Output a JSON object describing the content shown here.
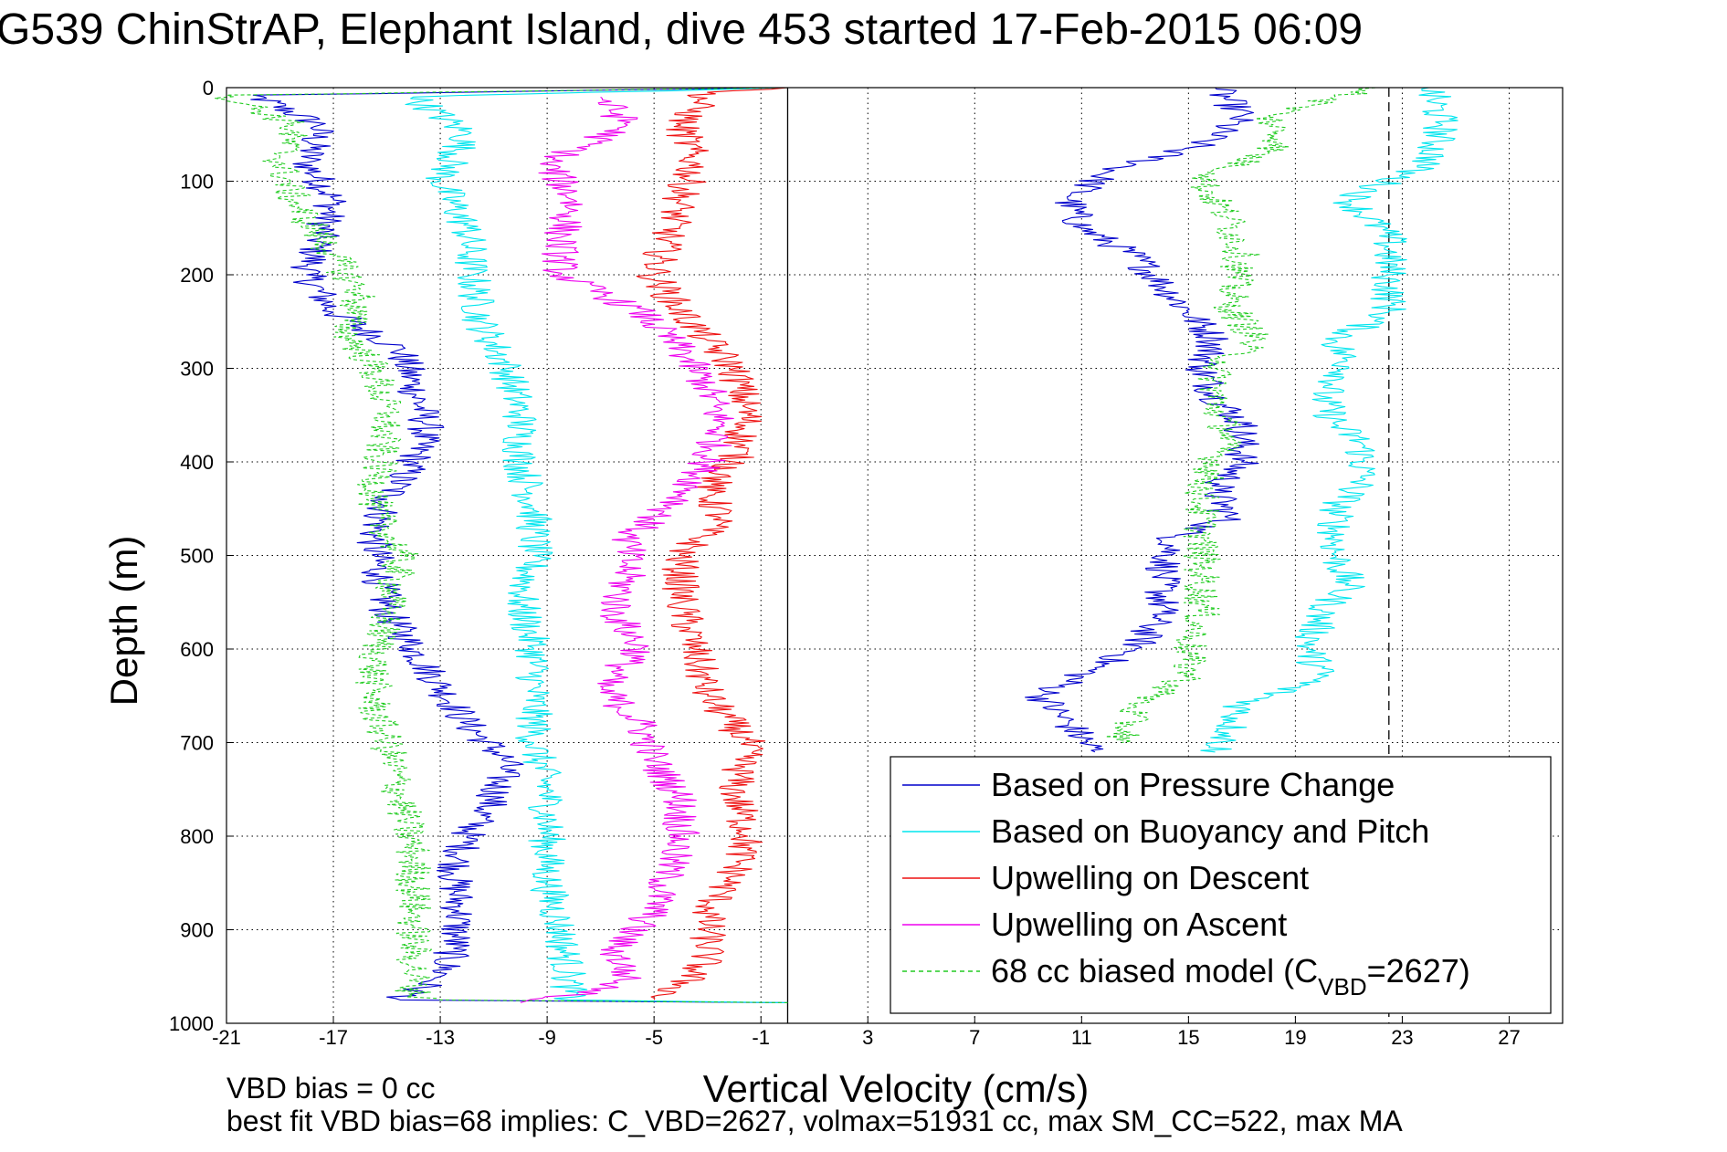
{
  "chart_data": {
    "type": "line",
    "title": "G539 ChinStrAP, Elephant Island, dive 453 started 17-Feb-2015 06:09",
    "xlabel": "Vertical Velocity (cm/s)",
    "ylabel": "Depth (m)",
    "xlim": [
      -21,
      29
    ],
    "ylim": [
      0,
      1000
    ],
    "y_reversed": true,
    "grid": true,
    "xticks": [
      -21,
      -17,
      -13,
      -9,
      -5,
      -1,
      3,
      7,
      11,
      15,
      19,
      23,
      27
    ],
    "yticks": [
      0,
      100,
      200,
      300,
      400,
      500,
      600,
      700,
      800,
      900,
      1000
    ],
    "reference_lines": [
      {
        "style": "solid",
        "color": "#000000",
        "x": 0
      },
      {
        "style": "dashed",
        "color": "#000000",
        "x": 22.5
      }
    ],
    "legend": {
      "position": "bottom-right",
      "entries": [
        {
          "label": "Based on Pressure Change",
          "color": "#0000cc",
          "dash": false
        },
        {
          "label": "Based on Buoyancy and Pitch",
          "color": "#00e5ee",
          "dash": false
        },
        {
          "label": "Upwelling on Descent",
          "color": "#ee1111",
          "dash": false
        },
        {
          "label": "Upwelling on Ascent",
          "color": "#ee00ee",
          "dash": false
        },
        {
          "label_main": "68 cc biased model (C",
          "label_sub": "VBD",
          "label_tail": "=2627)",
          "color": "#22cc22",
          "dash": true
        }
      ]
    },
    "series": [
      {
        "color": "#0000cc",
        "segment": "descent",
        "points": [
          [
            0,
            0
          ],
          [
            -20,
            8
          ],
          [
            -17.5,
            40
          ],
          [
            -18,
            80
          ],
          [
            -17,
            120
          ],
          [
            -17.5,
            160
          ],
          [
            -18,
            200
          ],
          [
            -17,
            240
          ],
          [
            -14.5,
            280
          ],
          [
            -14,
            320
          ],
          [
            -13.5,
            360
          ],
          [
            -14,
            400
          ],
          [
            -15,
            440
          ],
          [
            -15.5,
            480
          ],
          [
            -15.3,
            520
          ],
          [
            -15,
            560
          ],
          [
            -14,
            600
          ],
          [
            -13,
            640
          ],
          [
            -12,
            680
          ],
          [
            -10.5,
            720
          ],
          [
            -11,
            760
          ],
          [
            -12,
            800
          ],
          [
            -12.5,
            840
          ],
          [
            -12.3,
            880
          ],
          [
            -12.5,
            920
          ],
          [
            -13,
            950
          ],
          [
            -14.5,
            975
          ],
          [
            0,
            978
          ]
        ]
      },
      {
        "color": "#0000cc",
        "segment": "ascent",
        "points": [
          [
            0,
            0
          ],
          [
            16,
            0
          ],
          [
            17,
            30
          ],
          [
            15.5,
            60
          ],
          [
            12,
            90
          ],
          [
            10.5,
            120
          ],
          [
            11,
            150
          ],
          [
            13,
            180
          ],
          [
            14,
            210
          ],
          [
            15,
            240
          ],
          [
            16,
            270
          ],
          [
            15.5,
            300
          ],
          [
            16,
            330
          ],
          [
            17,
            360
          ],
          [
            17,
            400
          ],
          [
            16,
            430
          ],
          [
            16.5,
            460
          ],
          [
            14.5,
            480
          ],
          [
            14,
            520
          ],
          [
            14,
            560
          ],
          [
            13,
            600
          ],
          [
            11.5,
            620
          ],
          [
            9.5,
            650
          ],
          [
            10.5,
            680
          ],
          [
            11.5,
            710
          ]
        ]
      },
      {
        "color": "#00e5ee",
        "segment": "descent",
        "points": [
          [
            0,
            0
          ],
          [
            -14,
            10
          ],
          [
            -12,
            50
          ],
          [
            -13,
            100
          ],
          [
            -12,
            150
          ],
          [
            -11.8,
            200
          ],
          [
            -11.5,
            250
          ],
          [
            -10.5,
            300
          ],
          [
            -10,
            350
          ],
          [
            -10,
            400
          ],
          [
            -9.5,
            450
          ],
          [
            -9.5,
            500
          ],
          [
            -10,
            550
          ],
          [
            -9.5,
            600
          ],
          [
            -9.5,
            650
          ],
          [
            -9.5,
            700
          ],
          [
            -9,
            750
          ],
          [
            -9,
            800
          ],
          [
            -9,
            850
          ],
          [
            -8.5,
            900
          ],
          [
            -8.2,
            950
          ],
          [
            -8.2,
            975
          ],
          [
            0,
            978
          ]
        ]
      },
      {
        "color": "#00e5ee",
        "segment": "ascent",
        "points": [
          [
            0,
            0
          ],
          [
            24,
            0
          ],
          [
            24.5,
            40
          ],
          [
            24,
            80
          ],
          [
            21,
            120
          ],
          [
            22.5,
            160
          ],
          [
            22.5,
            200
          ],
          [
            22.5,
            240
          ],
          [
            20.5,
            270
          ],
          [
            21,
            300
          ],
          [
            20,
            330
          ],
          [
            20.5,
            360
          ],
          [
            21.5,
            380
          ],
          [
            21.5,
            420
          ],
          [
            20.5,
            450
          ],
          [
            20.5,
            500
          ],
          [
            21,
            530
          ],
          [
            20,
            560
          ],
          [
            19.5,
            600
          ],
          [
            20,
            630
          ],
          [
            17,
            660
          ],
          [
            16.5,
            690
          ],
          [
            16,
            710
          ]
        ]
      },
      {
        "color": "#ee1111",
        "segment": "descent",
        "points": [
          [
            0,
            0
          ],
          [
            -3,
            5
          ],
          [
            -4,
            40
          ],
          [
            -3.5,
            80
          ],
          [
            -4,
            120
          ],
          [
            -4.5,
            160
          ],
          [
            -5,
            200
          ],
          [
            -4,
            240
          ],
          [
            -3,
            270
          ],
          [
            -2,
            300
          ],
          [
            -1.5,
            350
          ],
          [
            -2,
            400
          ],
          [
            -3,
            430
          ],
          [
            -2.5,
            460
          ],
          [
            -4,
            500
          ],
          [
            -4,
            550
          ],
          [
            -3.5,
            600
          ],
          [
            -3,
            650
          ],
          [
            -1.5,
            700
          ],
          [
            -2,
            750
          ],
          [
            -1.5,
            800
          ],
          [
            -2,
            840
          ],
          [
            -3,
            880
          ],
          [
            -3,
            930
          ],
          [
            -4,
            960
          ],
          [
            -5,
            975
          ]
        ]
      },
      {
        "color": "#ee00ee",
        "segment": "ascent",
        "points": [
          [
            -7,
            10
          ],
          [
            -6,
            40
          ],
          [
            -9,
            80
          ],
          [
            -8,
            120
          ],
          [
            -8.5,
            160
          ],
          [
            -8.5,
            200
          ],
          [
            -5.5,
            240
          ],
          [
            -4,
            280
          ],
          [
            -3,
            320
          ],
          [
            -2.5,
            360
          ],
          [
            -3,
            400
          ],
          [
            -4,
            440
          ],
          [
            -6,
            480
          ],
          [
            -6,
            520
          ],
          [
            -6.5,
            560
          ],
          [
            -5.5,
            600
          ],
          [
            -7,
            640
          ],
          [
            -5.5,
            680
          ],
          [
            -5,
            720
          ],
          [
            -4,
            760
          ],
          [
            -4,
            800
          ],
          [
            -4.5,
            840
          ],
          [
            -5,
            880
          ],
          [
            -6.5,
            920
          ],
          [
            -6,
            950
          ],
          [
            -7,
            965
          ],
          [
            -10,
            978
          ]
        ]
      },
      {
        "color": "#22cc22",
        "segment": "descent",
        "dash": true,
        "points": [
          [
            0,
            0
          ],
          [
            -21,
            8
          ],
          [
            -18.5,
            40
          ],
          [
            -19,
            80
          ],
          [
            -18.5,
            120
          ],
          [
            -17,
            180
          ],
          [
            -16,
            220
          ],
          [
            -16.5,
            260
          ],
          [
            -15.5,
            300
          ],
          [
            -15,
            350
          ],
          [
            -15.3,
            400
          ],
          [
            -15.5,
            450
          ],
          [
            -14.5,
            500
          ],
          [
            -15,
            560
          ],
          [
            -15.5,
            620
          ],
          [
            -15.5,
            660
          ],
          [
            -15,
            700
          ],
          [
            -14.5,
            760
          ],
          [
            -14,
            820
          ],
          [
            -14,
            880
          ],
          [
            -14,
            940
          ],
          [
            -14,
            970
          ],
          [
            -13,
            975
          ],
          [
            0,
            978
          ]
        ]
      },
      {
        "color": "#22cc22",
        "segment": "ascent",
        "dash": true,
        "points": [
          [
            0,
            0
          ],
          [
            22,
            0
          ],
          [
            18,
            30
          ],
          [
            18.5,
            60
          ],
          [
            15.5,
            100
          ],
          [
            16.5,
            140
          ],
          [
            17,
            180
          ],
          [
            16.5,
            230
          ],
          [
            17.5,
            270
          ],
          [
            16,
            300
          ],
          [
            16,
            340
          ],
          [
            16.5,
            370
          ],
          [
            16,
            400
          ],
          [
            15.5,
            430
          ],
          [
            15.5,
            470
          ],
          [
            15.5,
            520
          ],
          [
            15.5,
            560
          ],
          [
            15,
            600
          ],
          [
            15,
            630
          ],
          [
            13,
            660
          ],
          [
            12.5,
            700
          ]
        ]
      }
    ],
    "annotations": [
      {
        "text": "VBD bias = 0 cc"
      },
      {
        "text": "best fit VBD bias=68 implies: C_VBD=2627, volmax=51931 cc, max SM_CC=522, max MA"
      }
    ]
  }
}
